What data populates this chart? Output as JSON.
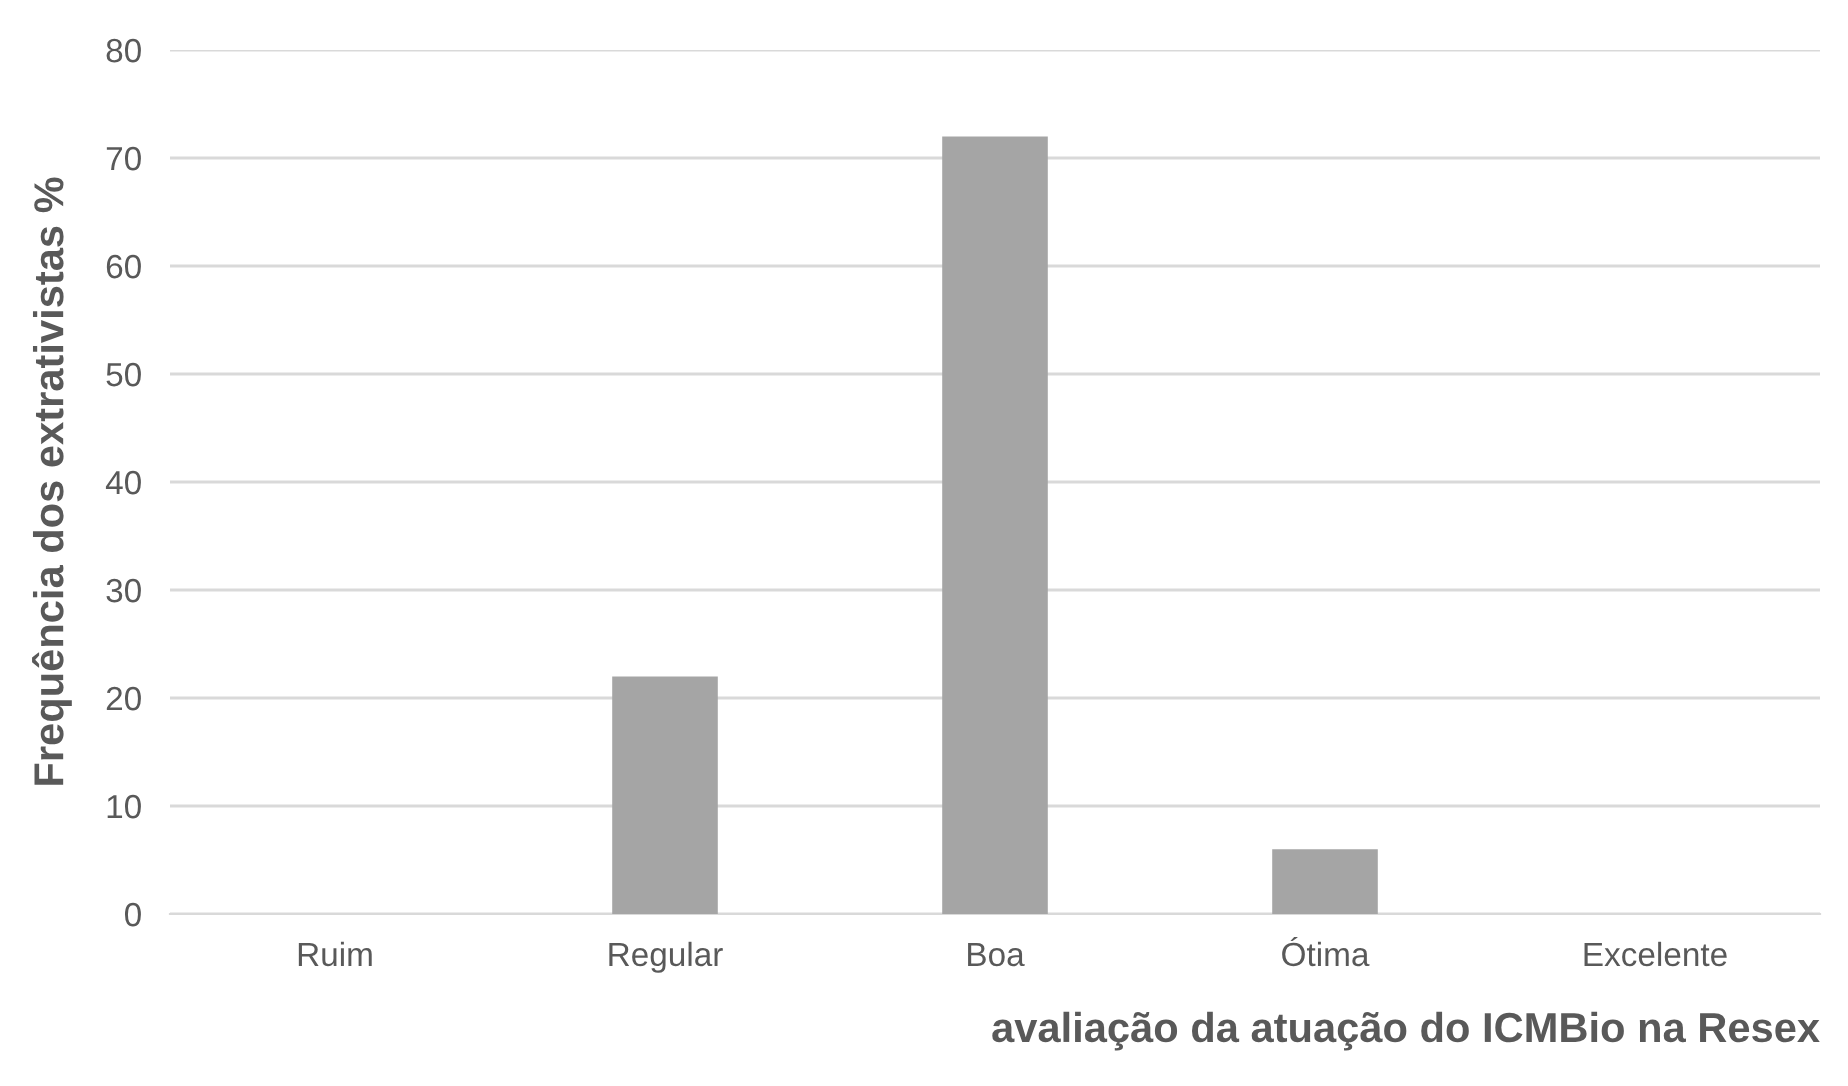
{
  "chart_data": {
    "type": "bar",
    "xlabel": "avaliação da atuação do ICMBio na Resex",
    "ylabel": "Frequência dos extrativistas %",
    "categories": [
      "Ruim",
      "Regular",
      "Boa",
      "Ótima",
      "Excelente"
    ],
    "values": [
      0,
      22,
      72,
      6,
      0
    ],
    "color": "#a5a5a5",
    "ylim": [
      0,
      80
    ],
    "yticks": [
      0,
      10,
      20,
      30,
      40,
      50,
      60,
      70,
      80
    ],
    "grid": "y",
    "legend": false
  }
}
